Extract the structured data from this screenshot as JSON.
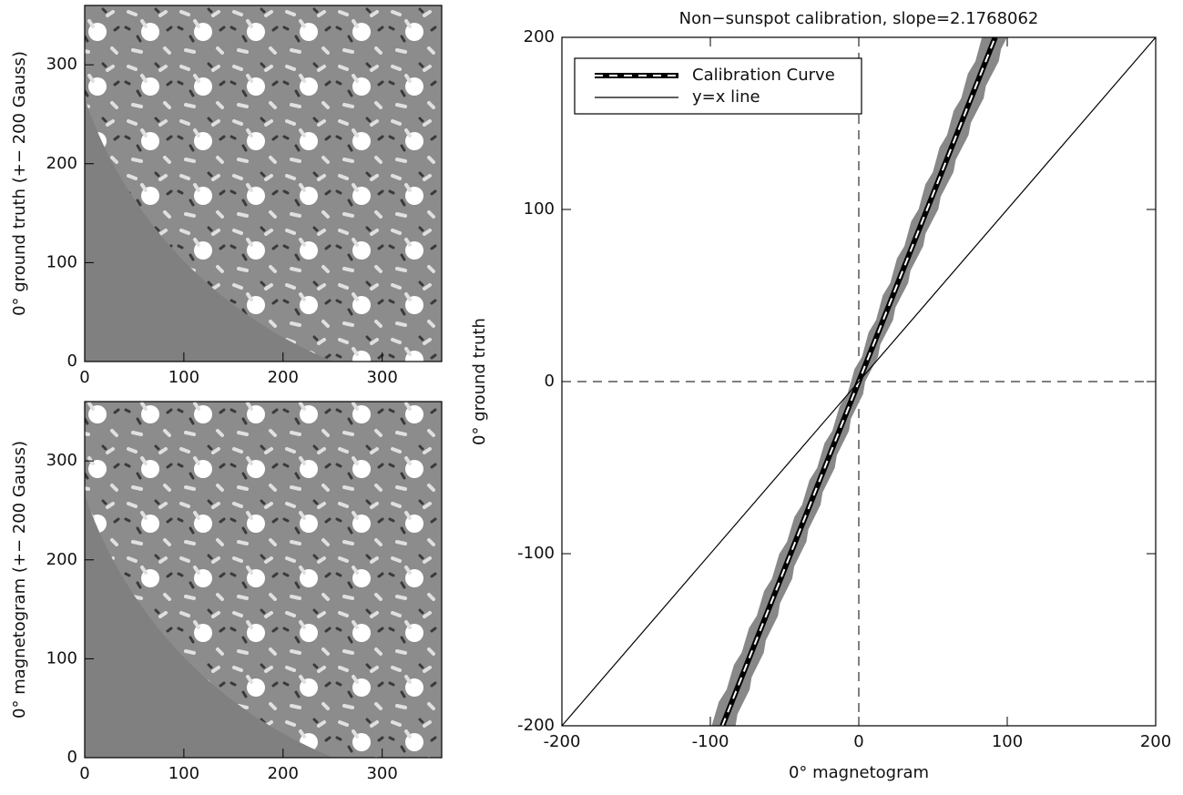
{
  "chart_data": [
    {
      "type": "image",
      "ylabel": "0° ground truth (+− 200 Gauss)",
      "xlim": [
        0,
        360
      ],
      "ylim": [
        0,
        360
      ],
      "xticks": [
        0,
        100,
        200,
        300
      ],
      "yticks": [
        0,
        100,
        200,
        300
      ]
    },
    {
      "type": "image",
      "ylabel": "0° magnetogram (+− 200 Gauss)",
      "xlim": [
        0,
        360
      ],
      "ylim": [
        0,
        360
      ],
      "xticks": [
        0,
        100,
        200,
        300
      ],
      "yticks": [
        0,
        100,
        200,
        300
      ]
    },
    {
      "type": "line",
      "title": "Non−sunspot calibration, slope=2.1768062",
      "xlabel": "0° magnetogram",
      "ylabel": "0° ground truth",
      "xlim": [
        -200,
        200
      ],
      "ylim": [
        -200,
        200
      ],
      "xticks": [
        -200,
        -100,
        0,
        100,
        200
      ],
      "yticks": [
        -200,
        -100,
        0,
        100,
        200
      ],
      "zero_lines": true,
      "legend": "upper left",
      "series": [
        {
          "name": "Calibration Curve",
          "color": "#000000",
          "x": [
            -91.88,
            91.88
          ],
          "values": [
            -200,
            200
          ]
        },
        {
          "name": "y=x line",
          "color": "#000000",
          "x": [
            -200,
            200
          ],
          "values": [
            -200,
            200
          ]
        }
      ]
    }
  ]
}
